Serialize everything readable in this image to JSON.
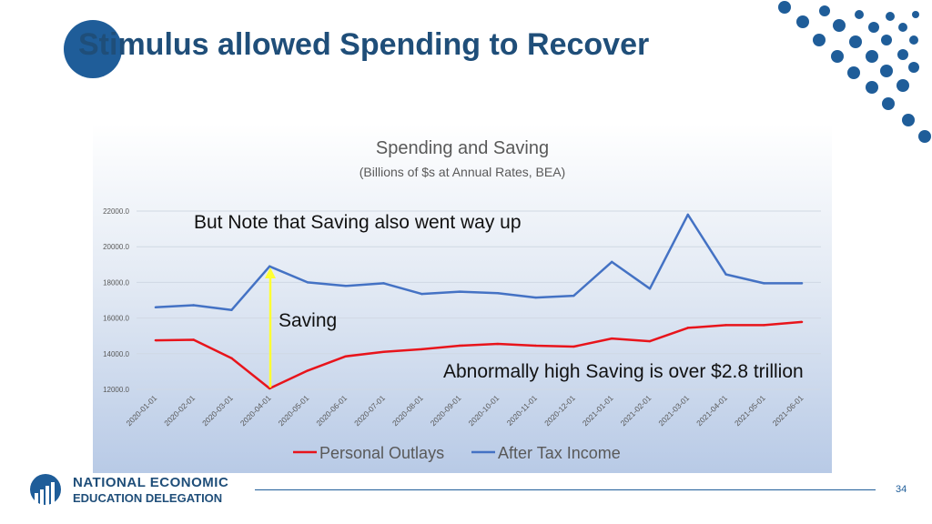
{
  "slide": {
    "title": "Stimulus allowed Spending to Recover",
    "page_number": "34",
    "org_line1": "NATIONAL ECONOMIC",
    "org_line2": "EDUCATION DELEGATION"
  },
  "annotations": {
    "saving_note": "But Note that Saving also went way up",
    "saving_label": "Saving",
    "saving_trillion": "Abnormally high Saving is over $2.8 trillion"
  },
  "colors": {
    "brand": "#1f5d99",
    "outlays": "#e8141b",
    "income": "#4472c4",
    "arrow": "#ffff33"
  },
  "chart_data": {
    "type": "line",
    "title": "Spending and Saving",
    "subtitle": "(Billions of $s at Annual Rates, BEA)",
    "xlabel": "",
    "ylabel": "",
    "ylim": [
      12000,
      22000
    ],
    "yticks": [
      "12000.0",
      "14000.0",
      "16000.0",
      "18000.0",
      "20000.0",
      "22000.0"
    ],
    "ytick_values": [
      12000,
      14000,
      16000,
      18000,
      20000,
      22000
    ],
    "grid": true,
    "legend": "bottom",
    "categories": [
      "2020-01-01",
      "2020-02-01",
      "2020-03-01",
      "2020-04-01",
      "2020-05-01",
      "2020-06-01",
      "2020-07-01",
      "2020-08-01",
      "2020-09-01",
      "2020-10-01",
      "2020-11-01",
      "2020-12-01",
      "2021-01-01",
      "2021-02-01",
      "2021-03-01",
      "2021-04-01",
      "2021-05-01",
      "2021-06-01"
    ],
    "series": [
      {
        "name": "Personal Outlays",
        "color": "#e8141b",
        "values": [
          14750,
          14780,
          13750,
          12050,
          13050,
          13850,
          14100,
          14250,
          14450,
          14550,
          14450,
          14400,
          14850,
          14700,
          15450,
          15600,
          15600,
          15780
        ]
      },
      {
        "name": "After Tax Income",
        "color": "#4472c4",
        "values": [
          16600,
          16720,
          16450,
          18900,
          18000,
          17800,
          17950,
          17350,
          17480,
          17400,
          17150,
          17250,
          19150,
          17650,
          21800,
          18450,
          17950,
          17950
        ]
      }
    ]
  }
}
